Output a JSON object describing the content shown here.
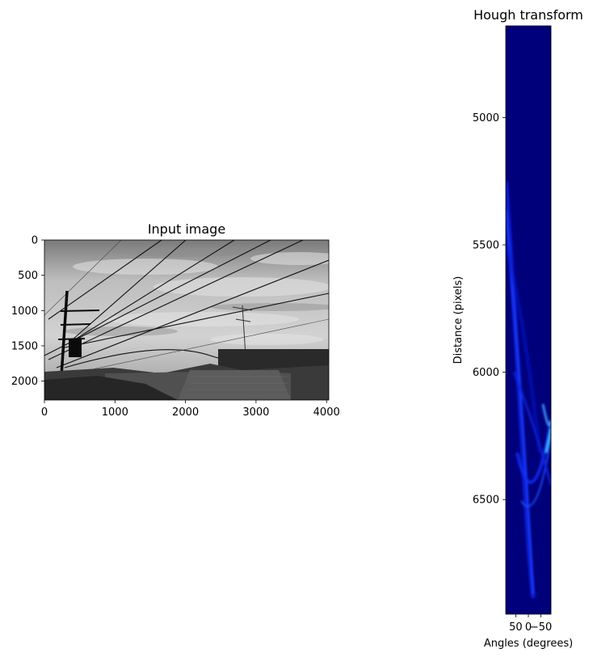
{
  "chart_data": [
    {
      "type": "image",
      "title": "Input image",
      "xlabel": "",
      "ylabel": "",
      "xlim": [
        0,
        4032
      ],
      "ylim": [
        2268,
        0
      ],
      "x_ticks": [
        0,
        1000,
        2000,
        3000,
        4000
      ],
      "y_ticks": [
        0,
        500,
        1000,
        1500,
        2000
      ],
      "colormap": "gray",
      "content": "grayscale photograph of power lines and a utility pole against a cloudy sky, rooftops at the bottom"
    },
    {
      "type": "heatmap",
      "title": "Hough transform",
      "xlabel": "Angles (degrees)",
      "ylabel": "Distance (pixels)",
      "x_tick_labels": [
        "50",
        "0",
        "−50"
      ],
      "x_ticks": [
        50,
        0,
        -50
      ],
      "xlim": [
        90,
        -90
      ],
      "y_ticks": [
        5000,
        5500,
        6000,
        6500
      ],
      "ylim": [
        6950,
        4640
      ],
      "colormap": "blue"
    }
  ]
}
